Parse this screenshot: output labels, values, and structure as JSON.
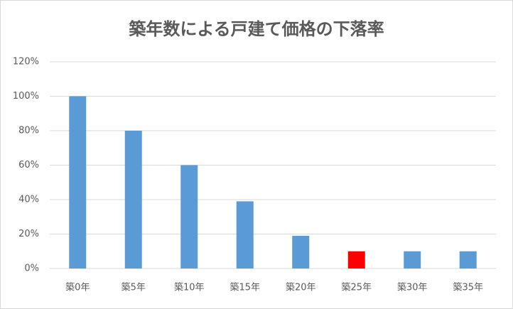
{
  "chart_data": {
    "type": "bar",
    "title": "築年数による戸建て価格の下落率",
    "categories": [
      "築0年",
      "築5年",
      "築10年",
      "築15年",
      "築20年",
      "築25年",
      "築30年",
      "築35年"
    ],
    "values": [
      100,
      80,
      60,
      39,
      19,
      10,
      10,
      10
    ],
    "colors": [
      "#5b9bd5",
      "#5b9bd5",
      "#5b9bd5",
      "#5b9bd5",
      "#5b9bd5",
      "#ff0000",
      "#5b9bd5",
      "#5b9bd5"
    ],
    "ylim": [
      0,
      120
    ],
    "yticks": [
      {
        "value": 0,
        "label": "0%"
      },
      {
        "value": 20,
        "label": "20%"
      },
      {
        "value": 40,
        "label": "40%"
      },
      {
        "value": 60,
        "label": "60%"
      },
      {
        "value": 80,
        "label": "80%"
      },
      {
        "value": 100,
        "label": "100%"
      },
      {
        "value": 120,
        "label": "120%"
      }
    ],
    "grid": true
  }
}
